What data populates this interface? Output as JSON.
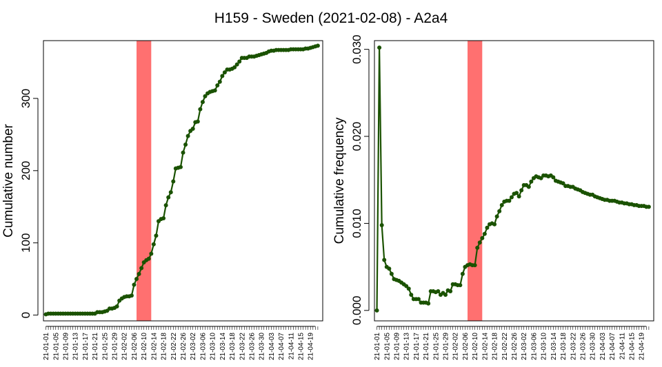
{
  "title": "H159 - Sweden (2021-02-08) - A2a4",
  "colors": {
    "series": "#1a5200",
    "highlight": "#ff7070",
    "frame": "#000000"
  },
  "dates": [
    "21-01-01",
    "21-01-05",
    "21-01-09",
    "21-01-13",
    "21-01-17",
    "21-01-21",
    "21-01-25",
    "21-01-29",
    "21-02-02",
    "21-02-06",
    "21-02-10",
    "21-02-14",
    "21-02-18",
    "21-02-22",
    "21-02-26",
    "21-03-02",
    "21-03-06",
    "21-03-10",
    "21-03-14",
    "21-03-18",
    "21-03-22",
    "21-03-26",
    "21-03-30",
    "21-04-03",
    "21-04-07",
    "21-04-11",
    "21-04-15",
    "21-04-19"
  ],
  "chart_data": [
    {
      "type": "line",
      "ylabel": "Cumulative number",
      "yticks": [
        "0",
        "100",
        "200",
        "300"
      ],
      "ylim": [
        -8,
        380
      ],
      "highlight": {
        "from_day": 37,
        "to_day": 43
      },
      "x_day_range": [
        -1,
        113
      ],
      "points": [
        [
          0,
          1
        ],
        [
          1,
          2
        ],
        [
          2,
          2
        ],
        [
          3,
          2
        ],
        [
          4,
          2
        ],
        [
          5,
          2
        ],
        [
          6,
          2
        ],
        [
          7,
          2
        ],
        [
          8,
          2
        ],
        [
          9,
          2
        ],
        [
          10,
          2
        ],
        [
          11,
          2
        ],
        [
          12,
          2
        ],
        [
          13,
          2
        ],
        [
          14,
          2
        ],
        [
          15,
          2
        ],
        [
          16,
          2
        ],
        [
          17,
          2
        ],
        [
          18,
          2
        ],
        [
          19,
          2
        ],
        [
          20,
          2
        ],
        [
          21,
          4
        ],
        [
          22,
          4
        ],
        [
          23,
          4
        ],
        [
          24,
          5
        ],
        [
          25,
          6
        ],
        [
          26,
          9
        ],
        [
          27,
          9
        ],
        [
          28,
          10
        ],
        [
          29,
          12
        ],
        [
          30,
          20
        ],
        [
          31,
          23
        ],
        [
          32,
          25
        ],
        [
          33,
          26
        ],
        [
          34,
          26
        ],
        [
          35,
          27
        ],
        [
          36,
          42
        ],
        [
          37,
          50
        ],
        [
          38,
          57
        ],
        [
          39,
          65
        ],
        [
          40,
          73
        ],
        [
          41,
          76
        ],
        [
          42,
          78
        ],
        [
          43,
          85
        ],
        [
          44,
          98
        ],
        [
          45,
          110
        ],
        [
          46,
          130
        ],
        [
          47,
          133
        ],
        [
          48,
          134
        ],
        [
          49,
          152
        ],
        [
          50,
          163
        ],
        [
          51,
          170
        ],
        [
          52,
          185
        ],
        [
          53,
          203
        ],
        [
          54,
          204
        ],
        [
          55,
          205
        ],
        [
          56,
          225
        ],
        [
          57,
          236
        ],
        [
          58,
          248
        ],
        [
          59,
          255
        ],
        [
          60,
          258
        ],
        [
          61,
          267
        ],
        [
          62,
          268
        ],
        [
          63,
          285
        ],
        [
          64,
          295
        ],
        [
          65,
          303
        ],
        [
          66,
          307
        ],
        [
          67,
          309
        ],
        [
          68,
          310
        ],
        [
          69,
          311
        ],
        [
          70,
          318
        ],
        [
          71,
          323
        ],
        [
          72,
          331
        ],
        [
          73,
          336
        ],
        [
          74,
          340
        ],
        [
          75,
          340
        ],
        [
          76,
          341
        ],
        [
          77,
          343
        ],
        [
          78,
          347
        ],
        [
          79,
          351
        ],
        [
          80,
          356
        ],
        [
          81,
          356
        ],
        [
          82,
          356
        ],
        [
          83,
          358
        ],
        [
          84,
          358
        ],
        [
          85,
          358
        ],
        [
          86,
          359
        ],
        [
          87,
          360
        ],
        [
          88,
          361
        ],
        [
          89,
          362
        ],
        [
          90,
          363
        ],
        [
          91,
          365
        ],
        [
          92,
          366
        ],
        [
          93,
          366
        ],
        [
          94,
          367
        ],
        [
          95,
          367
        ],
        [
          96,
          367
        ],
        [
          97,
          367
        ],
        [
          98,
          367
        ],
        [
          99,
          367
        ],
        [
          100,
          368
        ],
        [
          101,
          368
        ],
        [
          102,
          368
        ],
        [
          103,
          368
        ],
        [
          104,
          368
        ],
        [
          105,
          368
        ],
        [
          106,
          369
        ],
        [
          107,
          369
        ],
        [
          108,
          370
        ],
        [
          109,
          371
        ],
        [
          110,
          372
        ],
        [
          111,
          373
        ]
      ]
    },
    {
      "type": "line",
      "ylabel": "Cumulative frequency",
      "yticks": [
        "0.000",
        "0.010",
        "0.020",
        "0.030"
      ],
      "ylim": [
        -0.0012,
        0.031
      ],
      "highlight": {
        "from_day": 37,
        "to_day": 43
      },
      "x_day_range": [
        -1,
        113
      ],
      "points": [
        [
          0,
          0.0
        ],
        [
          1,
          0.0302
        ],
        [
          2,
          0.0098
        ],
        [
          3,
          0.0058
        ],
        [
          4,
          0.005
        ],
        [
          5,
          0.0048
        ],
        [
          6,
          0.0042
        ],
        [
          7,
          0.0036
        ],
        [
          8,
          0.0035
        ],
        [
          9,
          0.0034
        ],
        [
          10,
          0.0032
        ],
        [
          11,
          0.003
        ],
        [
          12,
          0.0028
        ],
        [
          13,
          0.0025
        ],
        [
          14,
          0.0018
        ],
        [
          15,
          0.0013
        ],
        [
          16,
          0.0013
        ],
        [
          17,
          0.0013
        ],
        [
          18,
          0.0009
        ],
        [
          19,
          0.0009
        ],
        [
          20,
          0.0009
        ],
        [
          21,
          0.0008
        ],
        [
          22,
          0.0022
        ],
        [
          23,
          0.0022
        ],
        [
          24,
          0.0021
        ],
        [
          25,
          0.0022
        ],
        [
          26,
          0.0018
        ],
        [
          27,
          0.002
        ],
        [
          28,
          0.0018
        ],
        [
          29,
          0.0023
        ],
        [
          30,
          0.0022
        ],
        [
          31,
          0.003
        ],
        [
          32,
          0.003
        ],
        [
          33,
          0.0029
        ],
        [
          34,
          0.0029
        ],
        [
          35,
          0.0042
        ],
        [
          36,
          0.005
        ],
        [
          37,
          0.0052
        ],
        [
          38,
          0.0053
        ],
        [
          39,
          0.0052
        ],
        [
          40,
          0.0052
        ],
        [
          41,
          0.0072
        ],
        [
          42,
          0.0078
        ],
        [
          43,
          0.0083
        ],
        [
          44,
          0.0088
        ],
        [
          45,
          0.0095
        ],
        [
          46,
          0.0099
        ],
        [
          47,
          0.01
        ],
        [
          48,
          0.0099
        ],
        [
          49,
          0.0108
        ],
        [
          50,
          0.0114
        ],
        [
          51,
          0.0121
        ],
        [
          52,
          0.0125
        ],
        [
          53,
          0.0126
        ],
        [
          54,
          0.0126
        ],
        [
          55,
          0.013
        ],
        [
          56,
          0.0134
        ],
        [
          57,
          0.0135
        ],
        [
          58,
          0.0131
        ],
        [
          59,
          0.0138
        ],
        [
          60,
          0.0144
        ],
        [
          61,
          0.0144
        ],
        [
          62,
          0.0142
        ],
        [
          63,
          0.0148
        ],
        [
          64,
          0.0152
        ],
        [
          65,
          0.0154
        ],
        [
          66,
          0.0153
        ],
        [
          67,
          0.0152
        ],
        [
          68,
          0.0155
        ],
        [
          69,
          0.0155
        ],
        [
          70,
          0.0154
        ],
        [
          71,
          0.0155
        ],
        [
          72,
          0.0153
        ],
        [
          73,
          0.0149
        ],
        [
          74,
          0.0148
        ],
        [
          75,
          0.0147
        ],
        [
          76,
          0.0146
        ],
        [
          77,
          0.0143
        ],
        [
          78,
          0.0143
        ],
        [
          79,
          0.0142
        ],
        [
          80,
          0.0142
        ],
        [
          81,
          0.014
        ],
        [
          82,
          0.0139
        ],
        [
          83,
          0.0138
        ],
        [
          84,
          0.0136
        ],
        [
          85,
          0.0135
        ],
        [
          86,
          0.0134
        ],
        [
          87,
          0.0133
        ],
        [
          88,
          0.0133
        ],
        [
          89,
          0.0131
        ],
        [
          90,
          0.013
        ],
        [
          91,
          0.0129
        ],
        [
          92,
          0.0128
        ],
        [
          93,
          0.0127
        ],
        [
          94,
          0.0127
        ],
        [
          95,
          0.0126
        ],
        [
          96,
          0.0126
        ],
        [
          97,
          0.0126
        ],
        [
          98,
          0.0125
        ],
        [
          99,
          0.0124
        ],
        [
          100,
          0.0124
        ],
        [
          101,
          0.0123
        ],
        [
          102,
          0.0123
        ],
        [
          103,
          0.0122
        ],
        [
          104,
          0.0122
        ],
        [
          105,
          0.0121
        ],
        [
          106,
          0.0121
        ],
        [
          107,
          0.012
        ],
        [
          108,
          0.012
        ],
        [
          109,
          0.012
        ],
        [
          110,
          0.0119
        ],
        [
          111,
          0.0119
        ]
      ]
    }
  ]
}
